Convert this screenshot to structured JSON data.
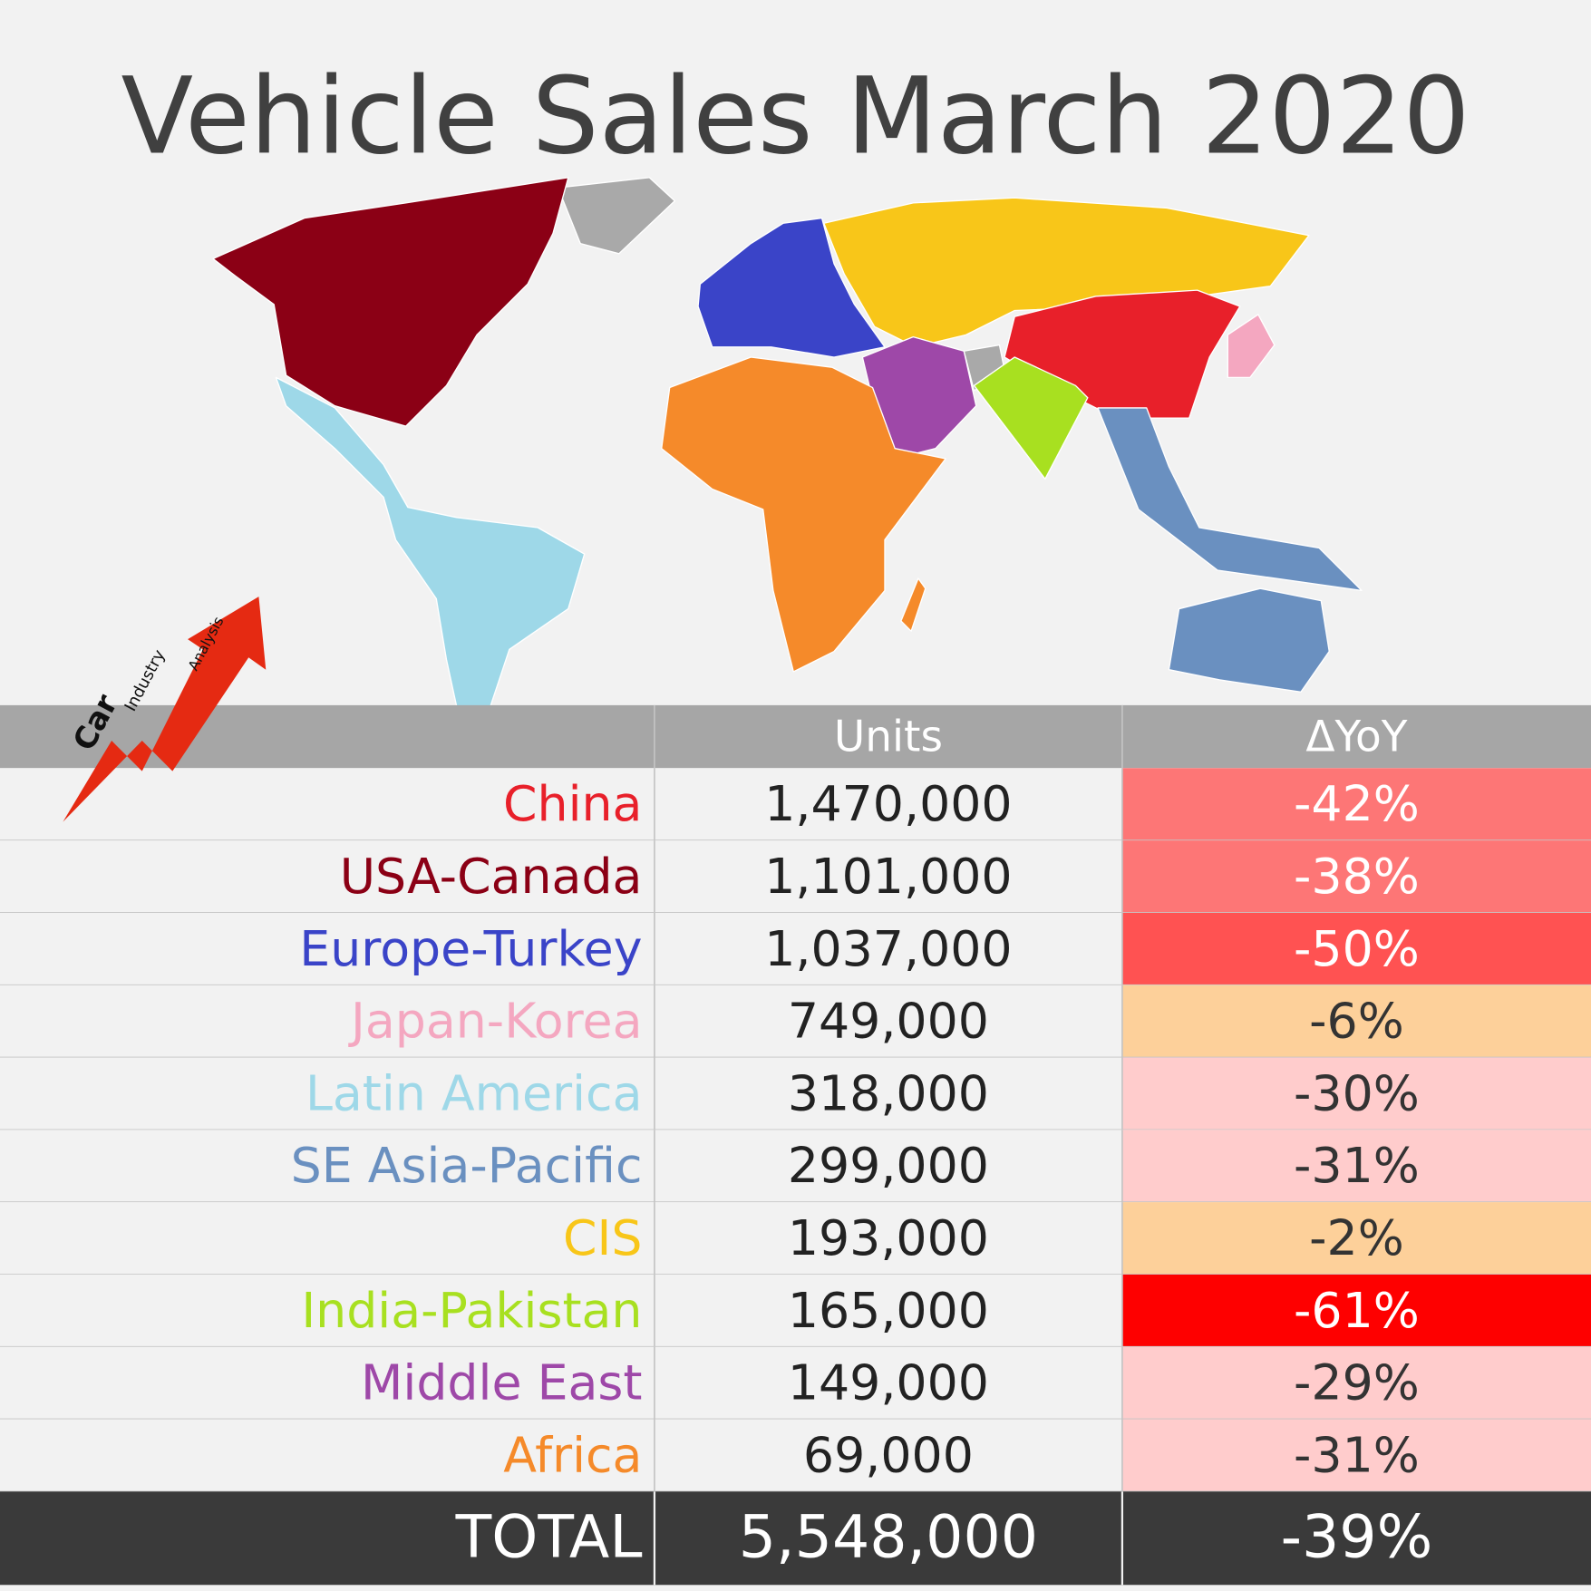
{
  "title": "Vehicle Sales March 2020",
  "logo": {
    "word1": "Car",
    "word2": "Industry",
    "word3": "Analysis"
  },
  "table": {
    "header": [
      "Units",
      "ΔYoY"
    ],
    "rows": [
      {
        "region": "China",
        "units": "1,470,000",
        "yoy": "-42%",
        "color": "#e8202a",
        "cell_color": "#fd7676",
        "text_color": "#ffffff"
      },
      {
        "region": "USA-Canada",
        "units": "1,101,000",
        "yoy": "-38%",
        "color": "#8b0015",
        "cell_color": "#fd7676",
        "text_color": "#ffffff"
      },
      {
        "region": "Europe-Turkey",
        "units": "1,037,000",
        "yoy": "-50%",
        "color": "#3a44c8",
        "cell_color": "#ff5252",
        "text_color": "#ffffff"
      },
      {
        "region": "Japan-Korea",
        "units": "749,000",
        "yoy": "-6%",
        "color": "#f4a7c0",
        "cell_color": "#fdd09a",
        "text_color": "#333333"
      },
      {
        "region": "Latin America",
        "units": "318,000",
        "yoy": "-30%",
        "color": "#9ed8e8",
        "cell_color": "#ffcccc",
        "text_color": "#333333"
      },
      {
        "region": "SE Asia-Pacific",
        "units": "299,000",
        "yoy": "-31%",
        "color": "#6a90c0",
        "cell_color": "#ffcccc",
        "text_color": "#333333"
      },
      {
        "region": "CIS",
        "units": "193,000",
        "yoy": "-2%",
        "color": "#f8c619",
        "cell_color": "#fdd09a",
        "text_color": "#333333"
      },
      {
        "region": "India-Pakistan",
        "units": "165,000",
        "yoy": "-61%",
        "color": "#a8e020",
        "cell_color": "#fe0000",
        "text_color": "#ffffff"
      },
      {
        "region": "Middle East",
        "units": "149,000",
        "yoy": "-29%",
        "color": "#9e48a8",
        "cell_color": "#ffcccc",
        "text_color": "#333333"
      },
      {
        "region": "Africa",
        "units": "69,000",
        "yoy": "-31%",
        "color": "#f58a2a",
        "cell_color": "#ffcccc",
        "text_color": "#333333"
      }
    ],
    "total": {
      "label": "TOTAL",
      "units": "5,548,000",
      "yoy": "-39%"
    }
  }
}
